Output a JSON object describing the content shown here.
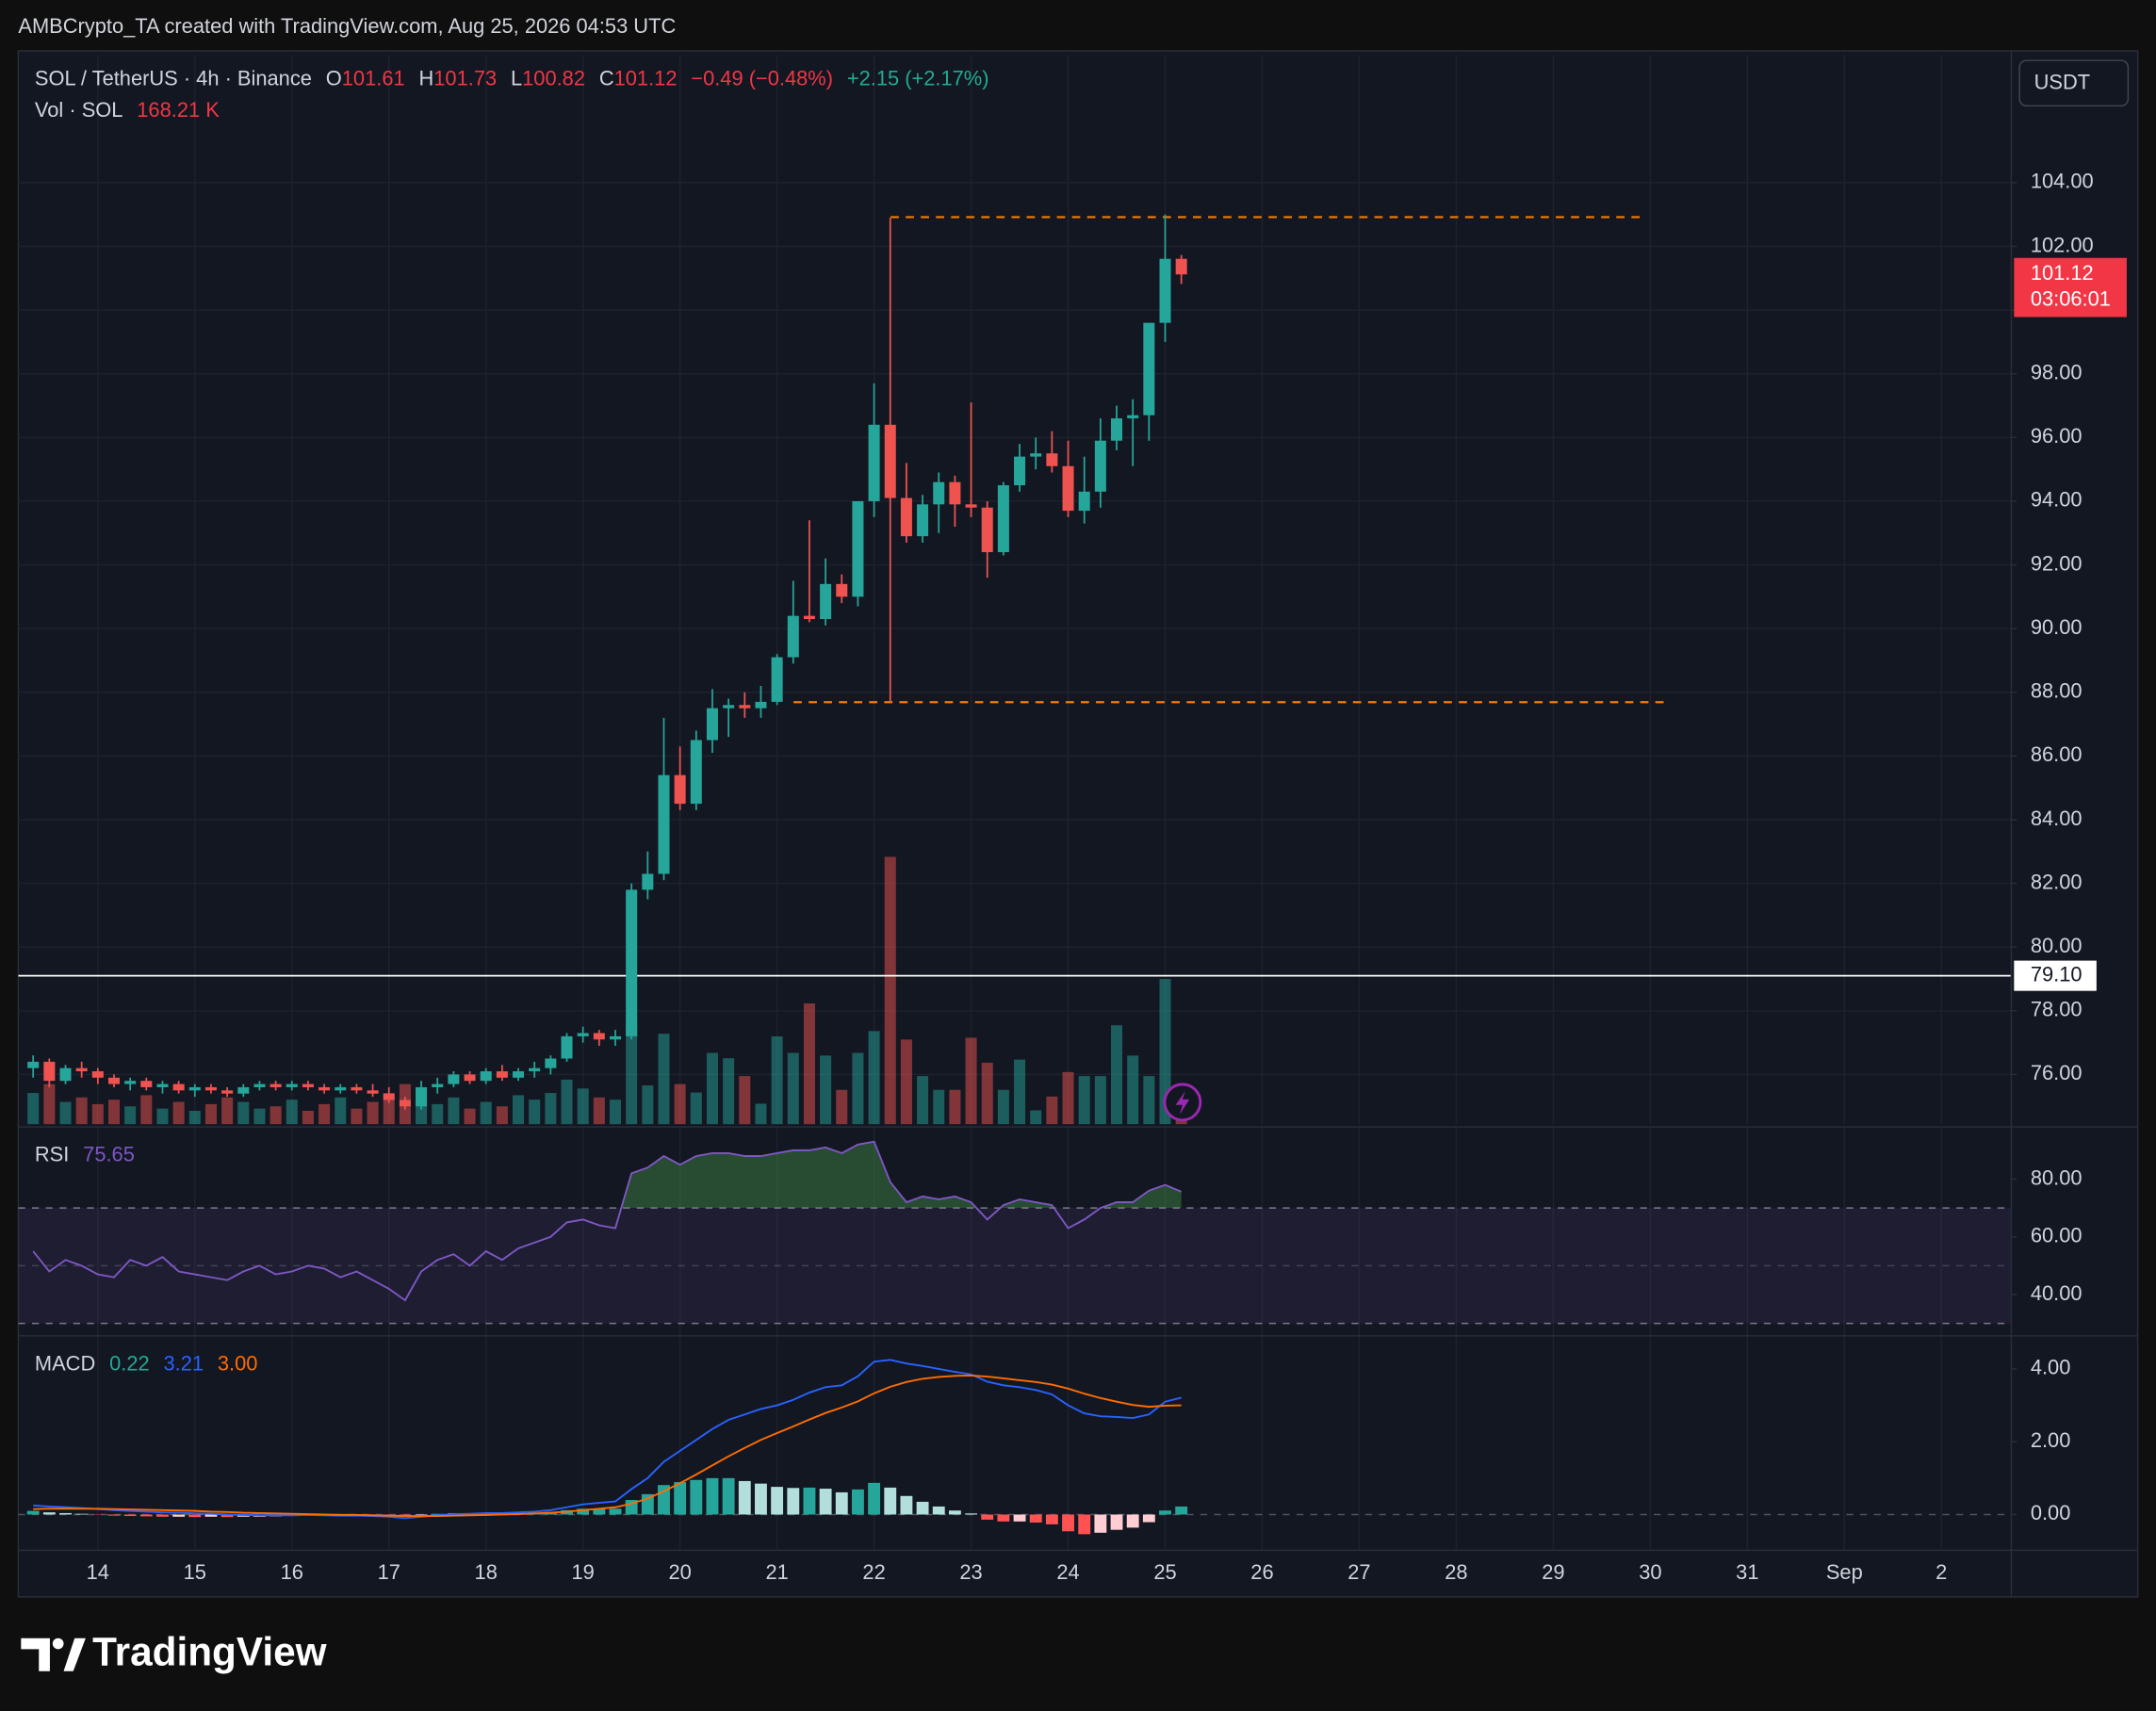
{
  "header": {
    "credit": "AMBCrypto_TA created with TradingView.com, Aug 25, 2026 04:53 UTC",
    "currency": "USDT"
  },
  "footer": {
    "brand": "TradingView"
  },
  "chart_data": [
    {
      "type": "candlestick",
      "title": "SOL / TetherUS · 4h · Binance",
      "readout": [
        {
          "label": "O",
          "value": "101.61"
        },
        {
          "label": "H",
          "value": "101.73"
        },
        {
          "label": "L",
          "value": "100.82"
        },
        {
          "label": "C",
          "value": "101.12"
        }
      ],
      "change": "−0.49 (−0.48%)",
      "change_from_day": "+2.15 (+2.17%)",
      "volume_title": "Vol · SOL",
      "volume_readout": "168.21 K",
      "up_color": "#26a69a",
      "down_color": "#ef5350",
      "x": [
        13.3333,
        13.5,
        13.6667,
        13.8333,
        14,
        14.1667,
        14.3333,
        14.5,
        14.6667,
        14.8333,
        15,
        15.1667,
        15.3333,
        15.5,
        15.6667,
        15.8333,
        16,
        16.1667,
        16.3333,
        16.5,
        16.6667,
        16.8333,
        17,
        17.1667,
        17.3333,
        17.5,
        17.6667,
        17.8333,
        18,
        18.1667,
        18.3333,
        18.5,
        18.6667,
        18.8333,
        19,
        19.1667,
        19.3333,
        19.5,
        19.6667,
        19.8333,
        20,
        20.1667,
        20.3333,
        20.5,
        20.6667,
        20.8333,
        21,
        21.1667,
        21.3333,
        21.5,
        21.6667,
        21.8333,
        22,
        22.1667,
        22.3333,
        22.5,
        22.6667,
        22.8333,
        23,
        23.1667,
        23.3333,
        23.5,
        23.6667,
        23.8333,
        24,
        24.1667,
        24.3333,
        24.5,
        24.6667,
        24.8333,
        25,
        25.1667
      ],
      "open": [
        76.2,
        76.4,
        75.8,
        76.2,
        76.1,
        75.9,
        75.7,
        75.8,
        75.6,
        75.7,
        75.5,
        75.6,
        75.5,
        75.4,
        75.6,
        75.7,
        75.6,
        75.7,
        75.6,
        75.5,
        75.6,
        75.5,
        75.4,
        75.2,
        75.0,
        75.6,
        75.7,
        76.0,
        75.8,
        76.1,
        75.9,
        76.1,
        76.2,
        76.5,
        77.2,
        77.3,
        77.1,
        77.2,
        81.8,
        82.3,
        85.4,
        84.5,
        86.5,
        87.5,
        87.6,
        87.5,
        87.7,
        89.1,
        90.4,
        90.3,
        91.4,
        91.0,
        94.0,
        96.4,
        94.1,
        92.9,
        93.9,
        94.6,
        93.9,
        93.8,
        92.4,
        94.5,
        95.4,
        95.5,
        95.1,
        93.7,
        94.3,
        95.9,
        96.6,
        96.7,
        99.6,
        101.61
      ],
      "high": [
        76.6,
        76.5,
        76.3,
        76.4,
        76.2,
        76.0,
        75.9,
        75.9,
        75.8,
        75.8,
        75.7,
        75.7,
        75.6,
        75.7,
        75.8,
        75.8,
        75.8,
        75.8,
        75.7,
        75.7,
        75.7,
        75.7,
        75.6,
        75.3,
        75.8,
        75.9,
        76.1,
        76.1,
        76.2,
        76.3,
        76.2,
        76.4,
        76.6,
        77.3,
        77.5,
        77.4,
        77.4,
        82.0,
        83.0,
        87.2,
        86.3,
        86.8,
        88.1,
        87.8,
        88.0,
        88.2,
        89.2,
        91.5,
        93.4,
        92.2,
        91.7,
        94.0,
        97.7,
        102.9,
        95.2,
        94.2,
        94.9,
        94.8,
        97.1,
        94.0,
        94.6,
        95.8,
        96.0,
        96.2,
        95.9,
        95.4,
        96.6,
        97.0,
        97.2,
        99.6,
        103.0,
        101.73
      ],
      "low": [
        75.9,
        75.6,
        75.7,
        75.9,
        75.7,
        75.6,
        75.5,
        75.5,
        75.4,
        75.4,
        75.3,
        75.4,
        75.3,
        75.3,
        75.5,
        75.5,
        75.5,
        75.5,
        75.4,
        75.4,
        75.4,
        75.3,
        75.1,
        74.9,
        74.9,
        75.4,
        75.6,
        75.7,
        75.7,
        75.8,
        75.8,
        75.9,
        76.0,
        76.4,
        77.0,
        76.9,
        76.9,
        77.1,
        81.5,
        82.1,
        84.3,
        84.3,
        86.1,
        86.6,
        87.2,
        87.2,
        87.6,
        88.9,
        90.2,
        90.1,
        90.8,
        90.7,
        93.5,
        87.7,
        92.7,
        92.7,
        93.0,
        93.2,
        93.5,
        91.6,
        92.3,
        94.3,
        95.0,
        94.9,
        93.5,
        93.3,
        93.8,
        95.6,
        95.1,
        95.9,
        99.0,
        100.82
      ],
      "close": [
        76.4,
        75.8,
        76.2,
        76.1,
        75.9,
        75.7,
        75.8,
        75.6,
        75.7,
        75.5,
        75.6,
        75.5,
        75.4,
        75.6,
        75.7,
        75.6,
        75.7,
        75.6,
        75.5,
        75.6,
        75.5,
        75.4,
        75.2,
        75.0,
        75.6,
        75.7,
        76.0,
        75.8,
        76.1,
        75.9,
        76.1,
        76.2,
        76.5,
        77.2,
        77.3,
        77.1,
        77.2,
        81.8,
        82.3,
        85.4,
        84.5,
        86.5,
        87.5,
        87.6,
        87.5,
        87.7,
        89.1,
        90.4,
        90.3,
        91.4,
        91.0,
        94.0,
        96.4,
        94.1,
        92.9,
        93.9,
        94.6,
        93.9,
        93.8,
        92.4,
        94.5,
        95.4,
        95.5,
        95.1,
        93.7,
        94.3,
        95.9,
        96.6,
        96.7,
        99.6,
        101.61,
        101.12
      ],
      "volume": [
        700,
        900,
        500,
        600,
        450,
        550,
        400,
        650,
        350,
        500,
        300,
        450,
        600,
        500,
        350,
        400,
        550,
        300,
        450,
        600,
        350,
        500,
        700,
        900,
        800,
        450,
        600,
        350,
        500,
        400,
        650,
        550,
        700,
        1000,
        800,
        600,
        550,
        2250,
        870,
        2030,
        900,
        710,
        1600,
        1480,
        1080,
        460,
        1970,
        1600,
        2710,
        1540,
        770,
        1600,
        2090,
        6000,
        1900,
        1080,
        770,
        770,
        1940,
        1380,
        770,
        1450,
        310,
        620,
        1170,
        1080,
        1080,
        2220,
        1540,
        1080,
        3260,
        168.21
      ],
      "vlim": [
        0,
        24000
      ],
      "xlim": [
        13.18,
        33.72
      ],
      "xticks": [
        14,
        15,
        16,
        17,
        18,
        19,
        20,
        21,
        22,
        23,
        24,
        25,
        26,
        27,
        28,
        29,
        30,
        31,
        {
          "value": 32,
          "label": "Sep"
        },
        {
          "value": 33,
          "label": "2"
        }
      ],
      "ylim": [
        74.44,
        108.01
      ],
      "yticks": [
        {
          "value": 76,
          "label": "76.00"
        },
        {
          "value": 78,
          "label": "78.00"
        },
        {
          "value": 80,
          "label": "80.00"
        },
        {
          "value": 82,
          "label": "82.00"
        },
        {
          "value": 84,
          "label": "84.00"
        },
        {
          "value": 86,
          "label": "86.00"
        },
        {
          "value": 88,
          "label": "88.00"
        },
        {
          "value": 90,
          "label": "90.00"
        },
        {
          "value": 92,
          "label": "92.00"
        },
        {
          "value": 94,
          "label": "94.00"
        },
        {
          "value": 96,
          "label": "96.00"
        },
        {
          "value": 98,
          "label": "98.00"
        },
        {
          "value": 100,
          "label": "100.00"
        },
        {
          "value": 102,
          "label": "102.00"
        },
        {
          "value": 104,
          "label": "104.00"
        }
      ],
      "grid": true,
      "hline": {
        "value": 79.1,
        "label": "79.10",
        "color": "#ffffff"
      },
      "levels": [
        {
          "value": 102.92,
          "x": [
            22.17,
            29.96
          ],
          "color": "#f57c00"
        },
        {
          "value": 87.69,
          "x": [
            21.17,
            30.16
          ],
          "color": "#f57c00"
        }
      ],
      "last_price": {
        "value": 101.12,
        "label": "101.12",
        "countdown": "03:06:01",
        "color": "#f23645"
      }
    },
    {
      "type": "line",
      "title": "RSI",
      "readout": [
        "75.65"
      ],
      "series": [
        {
          "name": "RSI",
          "color": "#7e57c2",
          "values": [
            55,
            48,
            52,
            50,
            47,
            46,
            52,
            50,
            53,
            48,
            47,
            46,
            45,
            48,
            50,
            47,
            48,
            50,
            49,
            46,
            48,
            45,
            42,
            38,
            48,
            52,
            54,
            50,
            55,
            52,
            56,
            58,
            60,
            65,
            66,
            64,
            63,
            82,
            84,
            88,
            85,
            88,
            89,
            89,
            88,
            88,
            89,
            90,
            90,
            91,
            89,
            92,
            93,
            79,
            72,
            74,
            73,
            74,
            72,
            66,
            71,
            73,
            72,
            71,
            63,
            66,
            70,
            72,
            72,
            76,
            78,
            75.65
          ]
        }
      ],
      "ylim": [
        25.7,
        98.1
      ],
      "yticks": [
        {
          "value": 40,
          "label": "40.00"
        },
        {
          "value": 60,
          "label": "60.00"
        },
        {
          "value": 80,
          "label": "80.00"
        }
      ],
      "bands": [
        30,
        70
      ],
      "midline": 50,
      "band_color": "#7e57c2",
      "overbought_color": "#4caf50"
    },
    {
      "type": "combo",
      "title": "MACD",
      "readout": [
        "0.22",
        "3.21",
        "3.00"
      ],
      "histogram": {
        "name": "Histogram",
        "values": [
          0.1,
          0.06,
          0.04,
          0.02,
          -0.01,
          -0.03,
          -0.04,
          -0.05,
          -0.06,
          -0.06,
          -0.07,
          -0.06,
          -0.07,
          -0.06,
          -0.06,
          -0.05,
          -0.04,
          -0.02,
          -0.02,
          -0.02,
          -0.02,
          -0.02,
          -0.03,
          -0.06,
          -0.02,
          0.02,
          0.04,
          0.04,
          0.05,
          0.04,
          0.05,
          0.05,
          0.07,
          0.12,
          0.16,
          0.16,
          0.16,
          0.4,
          0.56,
          0.81,
          0.89,
          0.95,
          1.0,
          1.0,
          0.92,
          0.85,
          0.76,
          0.73,
          0.74,
          0.71,
          0.61,
          0.69,
          0.87,
          0.74,
          0.51,
          0.35,
          0.22,
          0.11,
          0.03,
          -0.14,
          -0.19,
          -0.19,
          -0.22,
          -0.27,
          -0.46,
          -0.54,
          -0.5,
          -0.42,
          -0.36,
          -0.21,
          0.11,
          0.22
        ],
        "colors": [
          "#26a69a",
          "#b2dfdb",
          "#ffcdd2",
          "#ff5252"
        ]
      },
      "series": [
        {
          "name": "MACD",
          "color": "#2962ff",
          "values": [
            0.25,
            0.22,
            0.2,
            0.18,
            0.15,
            0.12,
            0.1,
            0.08,
            0.06,
            0.05,
            0.03,
            0.02,
            0.0,
            -0.01,
            -0.02,
            -0.02,
            -0.02,
            -0.01,
            -0.02,
            -0.03,
            -0.03,
            -0.04,
            -0.06,
            -0.1,
            -0.06,
            -0.02,
            0.01,
            0.02,
            0.04,
            0.04,
            0.06,
            0.08,
            0.12,
            0.2,
            0.28,
            0.32,
            0.36,
            0.7,
            1.0,
            1.45,
            1.75,
            2.05,
            2.35,
            2.6,
            2.75,
            2.9,
            3.0,
            3.15,
            3.35,
            3.5,
            3.55,
            3.8,
            4.2,
            4.25,
            4.15,
            4.08,
            4.0,
            3.92,
            3.85,
            3.65,
            3.55,
            3.5,
            3.42,
            3.3,
            3.0,
            2.78,
            2.7,
            2.68,
            2.65,
            2.75,
            3.1,
            3.21
          ]
        },
        {
          "name": "Signal",
          "color": "#ff6d00",
          "values": [
            0.15,
            0.16,
            0.16,
            0.16,
            0.16,
            0.15,
            0.14,
            0.13,
            0.12,
            0.11,
            0.1,
            0.08,
            0.07,
            0.05,
            0.04,
            0.03,
            0.02,
            0.01,
            0.0,
            -0.01,
            -0.01,
            -0.02,
            -0.03,
            -0.04,
            -0.04,
            -0.04,
            -0.03,
            -0.02,
            -0.01,
            0.0,
            0.01,
            0.03,
            0.05,
            0.08,
            0.12,
            0.16,
            0.2,
            0.3,
            0.44,
            0.64,
            0.86,
            1.1,
            1.35,
            1.6,
            1.83,
            2.05,
            2.24,
            2.42,
            2.61,
            2.79,
            2.94,
            3.11,
            3.33,
            3.51,
            3.64,
            3.73,
            3.78,
            3.81,
            3.82,
            3.79,
            3.74,
            3.69,
            3.64,
            3.57,
            3.46,
            3.32,
            3.2,
            3.1,
            3.01,
            2.96,
            2.99,
            3.0
          ]
        }
      ],
      "ylim": [
        -0.98,
        4.91
      ],
      "yticks": [
        {
          "value": 0,
          "label": "0.00"
        },
        {
          "value": 2,
          "label": "2.00"
        },
        {
          "value": 4,
          "label": "4.00"
        }
      ],
      "zero_line": 0
    }
  ]
}
